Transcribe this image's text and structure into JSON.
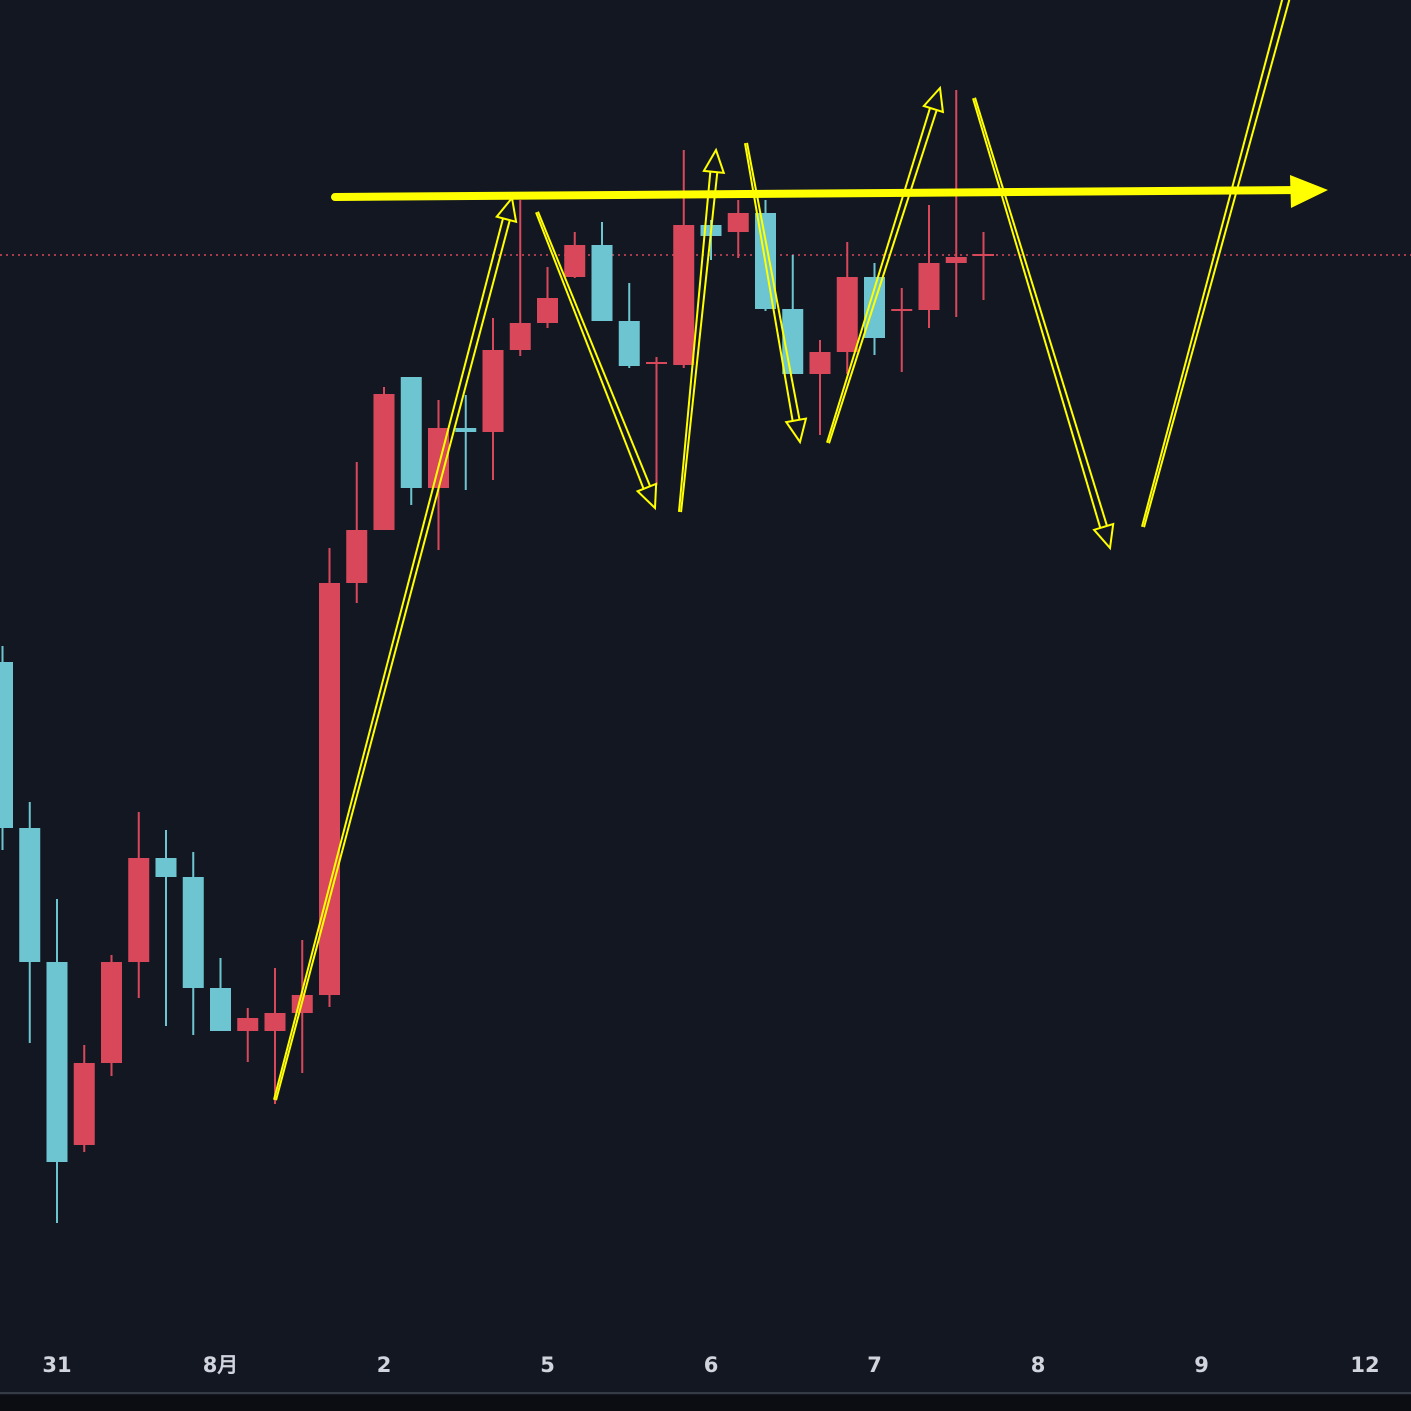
{
  "chart_data": {
    "type": "candlestick",
    "categories": [
      null,
      null,
      null,
      null,
      null,
      null,
      null,
      null,
      null,
      null,
      null,
      null,
      null,
      null,
      null,
      null,
      null,
      null,
      null,
      null,
      null,
      null,
      null,
      null,
      null,
      null,
      null,
      null,
      null,
      null,
      null,
      null,
      null,
      null,
      null,
      null,
      null
    ],
    "open": [
      728,
      562,
      428,
      245,
      327,
      428,
      532,
      513,
      402,
      359,
      359,
      377,
      395,
      807,
      860,
      1013,
      902,
      962,
      958,
      1040,
      1067,
      1113,
      1145,
      1069,
      1026,
      1025,
      1165,
      1158,
      1177,
      1081,
      1016,
      1038,
      1113,
      1080,
      1080,
      1127,
      1135
    ],
    "high": [
      744,
      588,
      491,
      345,
      435,
      578,
      560,
      538,
      432,
      382,
      422,
      450,
      842,
      928,
      1003,
      1013,
      990,
      995,
      1072,
      1190,
      1123,
      1158,
      1168,
      1107,
      1033,
      1240,
      1170,
      1190,
      1190,
      1135,
      1050,
      1148,
      1127,
      1102,
      1185,
      1300,
      1158
    ],
    "low": [
      540,
      347,
      167,
      238,
      314,
      392,
      364,
      355,
      359,
      328,
      286,
      317,
      383,
      787,
      860,
      885,
      840,
      900,
      910,
      1034,
      1062,
      1112,
      1069,
      1022,
      905,
      1022,
      1130,
      1132,
      1079,
      1016,
      955,
      1016,
      1035,
      1018,
      1062,
      1073,
      1090
    ],
    "close": [
      562,
      428,
      228,
      327,
      428,
      532,
      513,
      402,
      359,
      372,
      377,
      395,
      807,
      860,
      996,
      902,
      962,
      958,
      1040,
      1067,
      1092,
      1145,
      1069,
      1024,
      1028,
      1165,
      1154,
      1177,
      1081,
      1016,
      1038,
      1113,
      1052,
      1081,
      1127,
      1133,
      1136
    ],
    "up_color": "#d9485a",
    "down_color": "#6cc5d0",
    "ylim": [
      0,
      1390
    ],
    "xticks": [
      {
        "value": 2,
        "label": "31"
      },
      {
        "value": 8,
        "label": "8月"
      },
      {
        "value": 14,
        "label": "2"
      },
      {
        "value": 20,
        "label": "5"
      },
      {
        "value": 26,
        "label": "6"
      },
      {
        "value": 32,
        "label": "7"
      },
      {
        "value": 38,
        "label": "8"
      },
      {
        "value": 44,
        "label": "9"
      },
      {
        "value": 50,
        "label": "12"
      }
    ],
    "price_line": 1135
  }
}
